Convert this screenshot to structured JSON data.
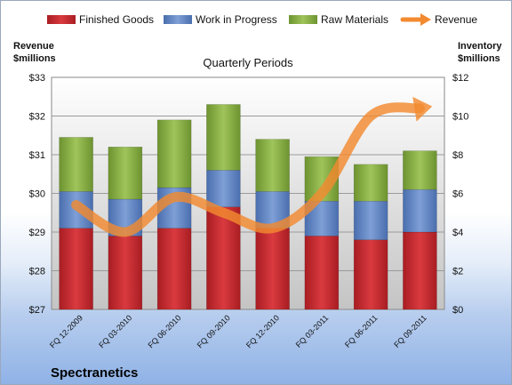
{
  "chart_data": {
    "type": "bar",
    "subtitle": "Quarterly Periods",
    "company": "Spectranetics",
    "categories": [
      "FQ 12-2009",
      "FQ 03-2010",
      "FQ 06-2010",
      "FQ 09-2010",
      "FQ 12-2010",
      "FQ 03-2011",
      "FQ 06-2011",
      "FQ 09-2011"
    ],
    "stacked": true,
    "series": [
      {
        "name": "Finished Goods",
        "axis": "right",
        "color": "#c0262d",
        "values": [
          4.2,
          3.8,
          4.2,
          5.3,
          4.2,
          3.8,
          3.6,
          4.0
        ]
      },
      {
        "name": "Work in Progress",
        "axis": "right",
        "color": "#5b7fbf",
        "values": [
          1.9,
          1.9,
          2.1,
          1.9,
          1.9,
          1.8,
          2.0,
          2.2
        ]
      },
      {
        "name": "Raw Materials",
        "axis": "right",
        "color": "#7fa33b",
        "values": [
          2.8,
          2.7,
          3.5,
          3.4,
          2.7,
          2.3,
          1.9,
          2.0
        ]
      }
    ],
    "line_series": {
      "name": "Revenue",
      "axis": "left",
      "color": "#f28a30",
      "values": [
        29.7,
        29.0,
        29.9,
        29.5,
        29.1,
        30.0,
        32.0,
        32.2
      ]
    },
    "left_axis": {
      "title_line1": "Revenue",
      "title_line2": "$millions",
      "min": 27,
      "max": 33,
      "ticks": [
        "$27",
        "$28",
        "$29",
        "$30",
        "$31",
        "$32",
        "$33"
      ]
    },
    "right_axis": {
      "title_line1": "Inventory",
      "title_line2": "$millions",
      "min": 0,
      "max": 12,
      "ticks": [
        "$0",
        "$2",
        "$4",
        "$6",
        "$8",
        "$10",
        "$12"
      ]
    },
    "grid": true,
    "legend_position": "top"
  }
}
